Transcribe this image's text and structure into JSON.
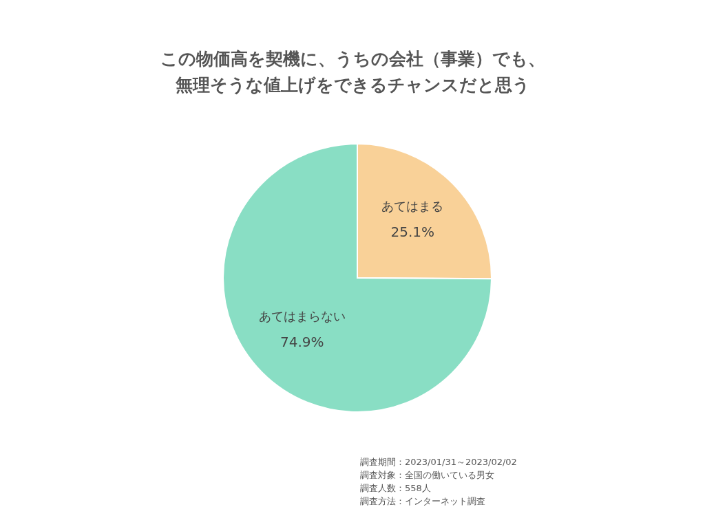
{
  "chart_data": {
    "type": "pie",
    "title": "この物価高を契機に、うちの会社（事業）でも、無理そうな値上げをできるチャンスだと思う",
    "categories": [
      "あてはまる",
      "あてはまらない"
    ],
    "values": [
      25.1,
      74.9
    ],
    "value_labels": [
      "25.1%",
      "74.9%"
    ],
    "colors": [
      "#f9d198",
      "#89dec4"
    ],
    "annotations": [
      "調査期間：2023/01/31～2023/02/02",
      "調査対象：全国の働いている男女",
      "調査人数：558人",
      "調査方法：インターネット調査"
    ]
  }
}
